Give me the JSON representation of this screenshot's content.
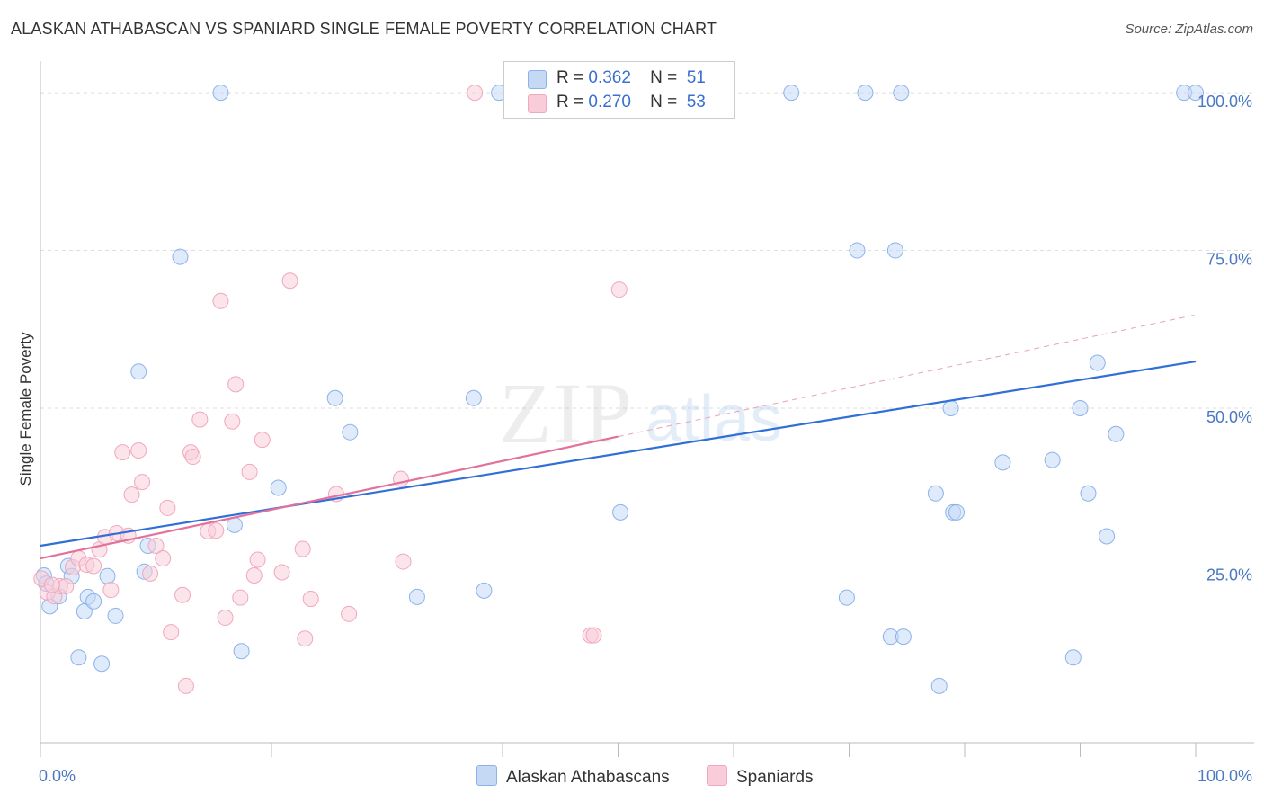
{
  "header": {
    "title": "ALASKAN ATHABASCAN VS SPANIARD SINGLE FEMALE POVERTY CORRELATION CHART",
    "source": "Source: ZipAtlas.com"
  },
  "watermark": {
    "zip": "ZIP",
    "atlas": "atlas"
  },
  "legend_top": [
    {
      "r_label": "R =",
      "r_value": "0.362",
      "n_label": "N =",
      "n_value": "51"
    },
    {
      "r_label": "R =",
      "r_value": "0.270",
      "n_label": "N =",
      "n_value": "53"
    }
  ],
  "chart_data": {
    "type": "scatter",
    "title": "ALASKAN ATHABASCAN VS SPANIARD SINGLE FEMALE POVERTY CORRELATION CHART",
    "xlabel": "",
    "ylabel": "Single Female Poverty",
    "xlim": [
      0,
      100
    ],
    "ylim": [
      -3,
      105
    ],
    "x_tick_labels": [
      "0.0%",
      "100.0%"
    ],
    "y_ticks": [
      25,
      50,
      75,
      100
    ],
    "y_tick_labels": [
      "25.0%",
      "50.0%",
      "75.0%",
      "100.0%"
    ],
    "grid": true,
    "legend_position": "bottom",
    "series": [
      {
        "name": "Alaskan Athabascans",
        "color": "#8bb3ea",
        "fill": "#c5d9f5",
        "trend": {
          "x": [
            0,
            100
          ],
          "y": [
            28.2,
            57.4
          ],
          "color": "#2f6fd6"
        },
        "points": [
          [
            0.3,
            23.5
          ],
          [
            0.8,
            18.6
          ],
          [
            1.6,
            20.2
          ],
          [
            2.4,
            25.0
          ],
          [
            2.7,
            23.4
          ],
          [
            3.3,
            10.5
          ],
          [
            3.8,
            17.8
          ],
          [
            4.1,
            20.1
          ],
          [
            4.6,
            19.4
          ],
          [
            5.3,
            9.5
          ],
          [
            5.8,
            23.4
          ],
          [
            6.5,
            17.1
          ],
          [
            8.5,
            55.8
          ],
          [
            9.0,
            24.1
          ],
          [
            9.3,
            28.2
          ],
          [
            12.1,
            74.0
          ],
          [
            15.6,
            100.0
          ],
          [
            16.8,
            31.5
          ],
          [
            17.4,
            11.5
          ],
          [
            20.6,
            37.4
          ],
          [
            25.5,
            51.6
          ],
          [
            26.8,
            46.2
          ],
          [
            32.6,
            20.1
          ],
          [
            37.5,
            51.6
          ],
          [
            38.4,
            21.1
          ],
          [
            39.7,
            100.0
          ],
          [
            50.2,
            33.5
          ],
          [
            65.0,
            100.0
          ],
          [
            69.8,
            20.0
          ],
          [
            70.7,
            75.0
          ],
          [
            71.4,
            100.0
          ],
          [
            73.6,
            13.8
          ],
          [
            74.0,
            75.0
          ],
          [
            74.5,
            100.0
          ],
          [
            74.7,
            13.8
          ],
          [
            77.5,
            36.5
          ],
          [
            77.8,
            6.0
          ],
          [
            78.8,
            50.0
          ],
          [
            79.0,
            33.5
          ],
          [
            79.3,
            33.5
          ],
          [
            83.3,
            41.4
          ],
          [
            87.6,
            41.8
          ],
          [
            89.4,
            10.5
          ],
          [
            90.0,
            50.0
          ],
          [
            90.7,
            36.5
          ],
          [
            91.5,
            57.2
          ],
          [
            92.3,
            29.7
          ],
          [
            93.1,
            45.9
          ],
          [
            99.0,
            100.0
          ],
          [
            100.0,
            100.0
          ],
          [
            0.5,
            22.2
          ]
        ]
      },
      {
        "name": "Spaniards",
        "color": "#f1a7be",
        "fill": "#f8cdd9",
        "trend": {
          "x": [
            0,
            50
          ],
          "y": [
            26.2,
            45.5
          ],
          "color": "#e2729b"
        },
        "trend_extended": {
          "x": [
            50,
            100
          ],
          "y": [
            45.5,
            64.8
          ],
          "color": "#e8a3b8"
        },
        "points": [
          [
            0.1,
            23.0
          ],
          [
            0.6,
            20.8
          ],
          [
            1.2,
            20.2
          ],
          [
            1.7,
            21.8
          ],
          [
            2.2,
            21.8
          ],
          [
            2.8,
            24.8
          ],
          [
            3.3,
            26.2
          ],
          [
            4.0,
            25.2
          ],
          [
            4.6,
            25.0
          ],
          [
            5.1,
            27.6
          ],
          [
            5.6,
            29.6
          ],
          [
            6.1,
            21.2
          ],
          [
            6.6,
            30.2
          ],
          [
            7.1,
            43.0
          ],
          [
            7.6,
            29.8
          ],
          [
            7.9,
            36.3
          ],
          [
            8.5,
            43.3
          ],
          [
            8.8,
            38.3
          ],
          [
            9.5,
            23.8
          ],
          [
            10.0,
            28.2
          ],
          [
            10.6,
            26.2
          ],
          [
            11.0,
            34.2
          ],
          [
            11.3,
            14.5
          ],
          [
            12.3,
            20.4
          ],
          [
            12.6,
            6.0
          ],
          [
            13.0,
            43.0
          ],
          [
            13.2,
            42.3
          ],
          [
            13.8,
            48.2
          ],
          [
            14.5,
            30.5
          ],
          [
            15.2,
            30.6
          ],
          [
            15.6,
            67.0
          ],
          [
            16.0,
            16.8
          ],
          [
            16.6,
            47.9
          ],
          [
            16.9,
            53.8
          ],
          [
            17.3,
            20.0
          ],
          [
            18.1,
            39.9
          ],
          [
            18.5,
            23.5
          ],
          [
            18.8,
            26.0
          ],
          [
            19.2,
            45.0
          ],
          [
            20.9,
            24.0
          ],
          [
            21.6,
            70.2
          ],
          [
            22.7,
            27.7
          ],
          [
            22.9,
            13.5
          ],
          [
            23.4,
            19.8
          ],
          [
            25.6,
            36.4
          ],
          [
            26.7,
            17.4
          ],
          [
            31.2,
            38.8
          ],
          [
            31.4,
            25.7
          ],
          [
            37.6,
            100.0
          ],
          [
            47.6,
            14.0
          ],
          [
            47.9,
            14.0
          ],
          [
            50.1,
            68.8
          ],
          [
            1.0,
            22.0
          ]
        ]
      }
    ]
  }
}
